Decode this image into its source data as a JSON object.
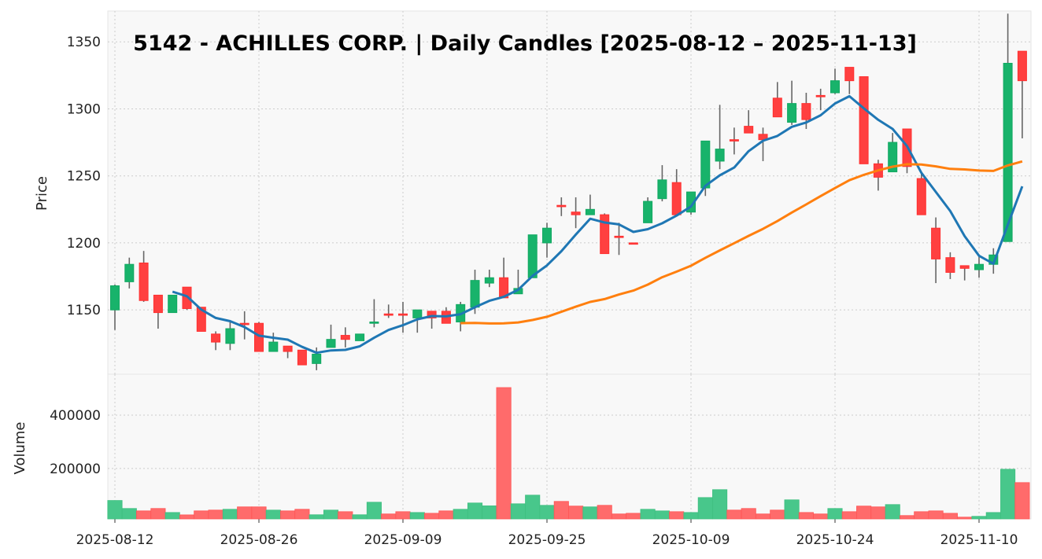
{
  "chart_data": {
    "type": "candlestick",
    "title": "5142 - ACHILLES CORP. | Daily Candles [2025-08-12 – 2025-11-13]",
    "price_panel": {
      "ylabel": "Price",
      "ylim": [
        1102,
        1373
      ],
      "yticks": [
        1150,
        1200,
        1250,
        1300,
        1350
      ]
    },
    "volume_panel": {
      "ylabel": "Volume",
      "ylim": [
        11000,
        553000
      ],
      "yticks": [
        200000,
        400000
      ]
    },
    "xtick_labels": [
      "2025-08-12",
      "2025-08-26",
      "2025-09-09",
      "2025-09-25",
      "2025-10-09",
      "2025-10-24",
      "2025-11-10"
    ],
    "xtick_indices": [
      0,
      10,
      20,
      30,
      40,
      50,
      60
    ],
    "grid": true,
    "moving_averages": [
      {
        "period": 5,
        "color": "#1f77b4"
      },
      {
        "period": 25,
        "color": "#ff7f0e"
      }
    ],
    "colors": {
      "up": "#18b36b",
      "down": "#ff4040",
      "up_volume": "#48c78b",
      "down_volume": "#ff6b6b",
      "wick": "#666666"
    },
    "dates": [
      "2025-08-12",
      "2025-08-13",
      "2025-08-14",
      "2025-08-15",
      "2025-08-18",
      "2025-08-19",
      "2025-08-20",
      "2025-08-21",
      "2025-08-22",
      "2025-08-25",
      "2025-08-26",
      "2025-08-27",
      "2025-08-28",
      "2025-08-29",
      "2025-09-01",
      "2025-09-02",
      "2025-09-03",
      "2025-09-04",
      "2025-09-05",
      "2025-09-08",
      "2025-09-09",
      "2025-09-10",
      "2025-09-11",
      "2025-09-12",
      "2025-09-16",
      "2025-09-17",
      "2025-09-18",
      "2025-09-19",
      "2025-09-22",
      "2025-09-24",
      "2025-09-25",
      "2025-09-26",
      "2025-09-29",
      "2025-09-30",
      "2025-10-01",
      "2025-10-02",
      "2025-10-03",
      "2025-10-06",
      "2025-10-07",
      "2025-10-08",
      "2025-10-09",
      "2025-10-10",
      "2025-10-14",
      "2025-10-15",
      "2025-10-16",
      "2025-10-17",
      "2025-10-20",
      "2025-10-21",
      "2025-10-22",
      "2025-10-23",
      "2025-10-24",
      "2025-10-27",
      "2025-10-28",
      "2025-10-29",
      "2025-10-30",
      "2025-10-31",
      "2025-11-04",
      "2025-11-05",
      "2025-11-06",
      "2025-11-07",
      "2025-11-10",
      "2025-11-11",
      "2025-11-12",
      "2025-11-13"
    ],
    "ohlc": [
      [
        1150,
        1169,
        1135,
        1168
      ],
      [
        1171,
        1189,
        1166,
        1184
      ],
      [
        1185,
        1194,
        1156,
        1157
      ],
      [
        1161,
        1161,
        1136,
        1148
      ],
      [
        1148,
        1161,
        1148,
        1161
      ],
      [
        1167,
        1167,
        1150,
        1151
      ],
      [
        1152,
        1152,
        1134,
        1134
      ],
      [
        1132,
        1134,
        1120,
        1126
      ],
      [
        1125,
        1141,
        1120,
        1136
      ],
      [
        1140,
        1149,
        1128,
        1139
      ],
      [
        1140,
        1141,
        1119,
        1119
      ],
      [
        1119,
        1133,
        1119,
        1126
      ],
      [
        1123,
        1123,
        1114,
        1119
      ],
      [
        1120,
        1120,
        1109,
        1109
      ],
      [
        1110,
        1122,
        1105,
        1117
      ],
      [
        1122,
        1139,
        1122,
        1128
      ],
      [
        1131,
        1137,
        1122,
        1128
      ],
      [
        1127,
        1132,
        1127,
        1132
      ],
      [
        1140,
        1158,
        1137,
        1141
      ],
      [
        1147,
        1154,
        1144,
        1146
      ],
      [
        1147,
        1156,
        1133,
        1146
      ],
      [
        1144,
        1150,
        1133,
        1150
      ],
      [
        1149,
        1149,
        1136,
        1144
      ],
      [
        1149,
        1152,
        1140,
        1140
      ],
      [
        1141,
        1156,
        1134,
        1154
      ],
      [
        1152,
        1180,
        1147,
        1172
      ],
      [
        1170,
        1180,
        1167,
        1174
      ],
      [
        1174,
        1189,
        1159,
        1159
      ],
      [
        1162,
        1180,
        1162,
        1166
      ],
      [
        1174,
        1206,
        1174,
        1206
      ],
      [
        1200,
        1215,
        1189,
        1211
      ],
      [
        1228,
        1234,
        1220,
        1227
      ],
      [
        1223,
        1234,
        1211,
        1221
      ],
      [
        1221,
        1236,
        1221,
        1225
      ],
      [
        1221,
        1222,
        1192,
        1192
      ],
      [
        1205,
        1215,
        1191,
        1204
      ],
      [
        1200,
        1200,
        1199,
        1199
      ],
      [
        1215,
        1234,
        1215,
        1231
      ],
      [
        1233,
        1258,
        1231,
        1247
      ],
      [
        1245,
        1255,
        1221,
        1221
      ],
      [
        1223,
        1238,
        1221,
        1238
      ],
      [
        1241,
        1276,
        1235,
        1276
      ],
      [
        1261,
        1303,
        1255,
        1270
      ],
      [
        1277,
        1286,
        1266,
        1276
      ],
      [
        1287,
        1299,
        1282,
        1282
      ],
      [
        1281,
        1286,
        1261,
        1277
      ],
      [
        1308,
        1320,
        1294,
        1294
      ],
      [
        1290,
        1321,
        1288,
        1304
      ],
      [
        1304,
        1312,
        1285,
        1292
      ],
      [
        1310,
        1315,
        1299,
        1309
      ],
      [
        1312,
        1330,
        1311,
        1321
      ],
      [
        1331,
        1331,
        1311,
        1321
      ],
      [
        1324,
        1324,
        1259,
        1259
      ],
      [
        1259,
        1262,
        1239,
        1249
      ],
      [
        1253,
        1282,
        1253,
        1275
      ],
      [
        1285,
        1285,
        1252,
        1257
      ],
      [
        1248,
        1252,
        1221,
        1221
      ],
      [
        1211,
        1219,
        1170,
        1188
      ],
      [
        1189,
        1193,
        1173,
        1178
      ],
      [
        1183,
        1183,
        1172,
        1181
      ],
      [
        1180,
        1190,
        1174,
        1184
      ],
      [
        1184,
        1196,
        1177,
        1191
      ],
      [
        1201,
        1371,
        1201,
        1334
      ],
      [
        1343,
        1343,
        1278,
        1321
      ]
    ],
    "volume": [
      80000,
      50000,
      41000,
      50000,
      35000,
      26000,
      41000,
      44000,
      47000,
      56000,
      56000,
      44000,
      41000,
      47000,
      26500,
      44000,
      38000,
      26500,
      73500,
      29500,
      38000,
      35000,
      32000,
      41000,
      47000,
      70600,
      60000,
      503000,
      67600,
      100000,
      61800,
      76500,
      59000,
      56000,
      61800,
      29500,
      32000,
      47000,
      41000,
      38000,
      35000,
      91000,
      120600,
      44000,
      50000,
      29500,
      44000,
      82400,
      35000,
      29500,
      50000,
      38000,
      59000,
      56000,
      64700,
      23500,
      38000,
      41000,
      32000,
      17600,
      20600,
      35000,
      197000,
      147000
    ]
  }
}
